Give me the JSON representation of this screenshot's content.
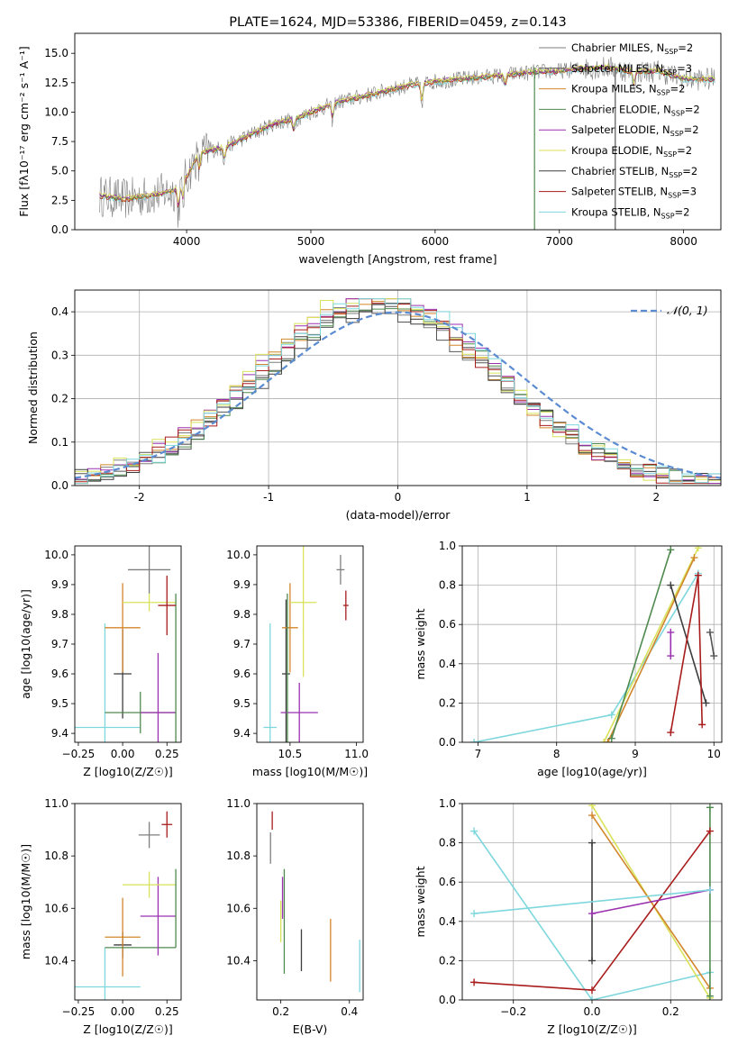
{
  "colors": [
    "#7f7f7f",
    "#555555",
    "#d2862b",
    "#4f8a4f",
    "#9b30b0",
    "#d9e25a",
    "#3d3d3d",
    "#a81c1c",
    "#7fd7de"
  ],
  "chart_data": [
    {
      "id": "spectrum",
      "type": "line",
      "title": "PLATE=1624, MJD=53386, FIBERID=0459, z=0.143",
      "xlabel": "wavelength [Angstrom, rest frame]",
      "ylabel": "Flux [fλ10⁻¹⁷ erg cm⁻² s⁻¹ A⁻¹]",
      "xlim": [
        3100,
        8300
      ],
      "ylim": [
        0,
        16.7
      ],
      "xticks": [
        4000,
        5000,
        6000,
        7000,
        8000
      ],
      "yticks": [
        0.0,
        2.5,
        5.0,
        7.5,
        10.0,
        12.5,
        15.0
      ],
      "grid": false,
      "legend_position": "top-right",
      "legend": [
        "Chabrier MILES, N_SSP=2",
        "Salpeter MILES, N_SSP=3",
        "Kroupa MILES, N_SSP=2",
        "Chabrier ELODIE, N_SSP=2",
        "Salpeter ELODIE, N_SSP=2",
        "Kroupa ELODIE, N_SSP=2",
        "Chabrier STELIB, N_SSP=2",
        "Salpeter STELIB, N_SSP=3",
        "Kroupa STELIB, N_SSP=2"
      ],
      "continuum": {
        "x": [
          3300,
          3500,
          3700,
          3900,
          4000,
          4100,
          4300,
          4500,
          4700,
          4900,
          5000,
          5200,
          5400,
          5600,
          5800,
          6000,
          6200,
          6400,
          6600,
          6800,
          7000,
          7200,
          7400,
          7600,
          7800,
          8000,
          8200
        ],
        "y": [
          2.9,
          2.6,
          2.9,
          3.3,
          4.5,
          6.5,
          7.0,
          8.0,
          9.0,
          9.5,
          10.0,
          10.8,
          11.3,
          11.8,
          12.3,
          12.6,
          12.8,
          13.0,
          13.2,
          13.4,
          13.5,
          13.7,
          13.8,
          13.4,
          13.5,
          12.8,
          12.8
        ]
      },
      "absorption_lines": [
        [
          3934,
          2.2
        ],
        [
          3969,
          1.8
        ],
        [
          4102,
          1.5
        ],
        [
          4304,
          1.2
        ],
        [
          4861,
          1.0
        ],
        [
          5175,
          1.4
        ],
        [
          5893,
          1.8
        ],
        [
          6563,
          1.0
        ],
        [
          7600,
          1.2
        ]
      ],
      "model_drops": [
        [
          6800,
          3
        ],
        [
          7450,
          1
        ]
      ]
    },
    {
      "id": "residual-hist",
      "type": "histogram",
      "xlabel": "(data-model)/error",
      "ylabel": "Normed distribution",
      "xlim": [
        -2.5,
        2.5
      ],
      "ylim": [
        0,
        0.45
      ],
      "xticks": [
        -2,
        -1,
        0,
        1,
        2
      ],
      "yticks": [
        0.0,
        0.1,
        0.2,
        0.3,
        0.4
      ],
      "grid": true,
      "legend_position": "top-right",
      "reference_curve": {
        "name": "𝒩(0, 1)",
        "color": "#5b8bd0",
        "style": "dashed"
      },
      "bin_width": 0.1,
      "peak_center": -0.15,
      "sigma": 0.92,
      "series_shift": [
        -0.12,
        0.05,
        -0.08,
        0.1,
        -0.02,
        -0.15,
        0.08,
        0.0,
        0.12
      ],
      "series_scale": [
        1.0,
        0.95,
        1.02,
        0.98,
        1.04,
        1.05,
        0.97,
        1.01,
        1.03
      ]
    },
    {
      "id": "age-vs-Z",
      "type": "errorbar",
      "xlabel": "Z [log10(Z/Z☉)]",
      "ylabel": "age  [log10(age/yr)]",
      "xlim": [
        -0.27,
        0.33
      ],
      "ylim": [
        9.37,
        10.03
      ],
      "xticks": [
        -0.25,
        0.0,
        0.25
      ],
      "xticklabels": [
        "−0.25",
        "0.00",
        "0.25"
      ],
      "yticks": [
        9.4,
        9.5,
        9.6,
        9.7,
        9.8,
        9.9,
        10.0
      ],
      "grid": false,
      "points": [
        {
          "x": -0.1,
          "y": 9.42,
          "xerr": 0.2,
          "yerr": 0.35,
          "series": 8
        },
        {
          "x": 0.0,
          "y": 9.6,
          "xerr": 0.05,
          "yerr": 0.15,
          "series": 6
        },
        {
          "x": 0.0,
          "y": 9.755,
          "xerr": 0.1,
          "yerr": 0.15,
          "series": 2
        },
        {
          "x": 0.1,
          "y": 9.47,
          "xerr": 0.2,
          "yerr": 0.07,
          "series": 3
        },
        {
          "x": 0.2,
          "y": 9.47,
          "xerr": 0.1,
          "yerr": 0.2,
          "series": 4
        },
        {
          "x": 0.15,
          "y": 9.84,
          "xerr": 0.15,
          "yerr": 0.03,
          "series": 5
        },
        {
          "x": 0.3,
          "y": 9.47,
          "xerr": 0.0,
          "yerr": 0.4,
          "series": 3
        },
        {
          "x": 0.25,
          "y": 9.83,
          "xerr": 0.05,
          "yerr": 0.1,
          "series": 7
        },
        {
          "x": 0.15,
          "y": 9.95,
          "xerr": 0.12,
          "yerr": 0.08,
          "series": 0
        }
      ]
    },
    {
      "id": "age-vs-mass",
      "type": "errorbar",
      "xlabel": "mass [log10(M/M☉)]",
      "ylabel": "",
      "xlim": [
        10.25,
        11.05
      ],
      "ylim": [
        9.37,
        10.03
      ],
      "xticks": [
        10.5,
        11.0
      ],
      "xticklabels": [
        "10.5",
        "11.0"
      ],
      "yticks": [
        9.4,
        9.5,
        9.6,
        9.7,
        9.8,
        9.9,
        10.0
      ],
      "grid": false,
      "points": [
        {
          "x": 10.35,
          "y": 9.42,
          "xerr": 0.05,
          "yerr": 0.35,
          "series": 8
        },
        {
          "x": 10.47,
          "y": 9.6,
          "xerr": 0.03,
          "yerr": 0.25,
          "series": 6
        },
        {
          "x": 10.5,
          "y": 9.755,
          "xerr": 0.06,
          "yerr": 0.15,
          "series": 2
        },
        {
          "x": 10.57,
          "y": 9.47,
          "xerr": 0.14,
          "yerr": 0.1,
          "series": 4
        },
        {
          "x": 10.6,
          "y": 9.84,
          "xerr": 0.1,
          "yerr": 0.25,
          "series": 5
        },
        {
          "x": 10.92,
          "y": 9.83,
          "xerr": 0.02,
          "yerr": 0.05,
          "series": 7
        },
        {
          "x": 10.88,
          "y": 9.95,
          "xerr": 0.03,
          "yerr": 0.05,
          "series": 0
        },
        {
          "x": 10.48,
          "y": 9.6,
          "xerr": 0.0,
          "yerr": 0.27,
          "series": 3
        }
      ]
    },
    {
      "id": "weight-vs-age",
      "type": "line",
      "xlabel": "age  [log10(age/yr)]",
      "ylabel": "mass weight",
      "xlim": [
        6.8,
        10.1
      ],
      "ylim": [
        0,
        1.0
      ],
      "xticks": [
        7,
        8,
        9,
        10
      ],
      "yticks": [
        0.0,
        0.2,
        0.4,
        0.6,
        0.8,
        1.0
      ],
      "grid": true,
      "series": [
        {
          "x": [
            6.95,
            8.7,
            9.8
          ],
          "y": [
            0.0,
            0.14,
            0.86
          ],
          "color_index": 8
        },
        {
          "x": [
            8.6,
            9.8
          ],
          "y": [
            0.0,
            0.99
          ],
          "color_index": 5
        },
        {
          "x": [
            8.65,
            9.75
          ],
          "y": [
            0.0,
            0.94
          ],
          "color_index": 2
        },
        {
          "x": [
            8.7,
            9.45
          ],
          "y": [
            0.02,
            0.98
          ],
          "color_index": 3
        },
        {
          "x": [
            9.45,
            9.9
          ],
          "y": [
            0.8,
            0.2
          ],
          "color_index": 6
        },
        {
          "x": [
            9.45,
            9.8,
            9.85
          ],
          "y": [
            0.05,
            0.85,
            0.09
          ],
          "color_index": 7
        },
        {
          "x": [
            9.45,
            9.45
          ],
          "y": [
            0.44,
            0.56
          ],
          "color_index": 4
        },
        {
          "x": [
            9.95,
            10.0
          ],
          "y": [
            0.56,
            0.44
          ],
          "color_index": 1
        }
      ]
    },
    {
      "id": "mass-vs-Z",
      "type": "errorbar",
      "xlabel": "Z [log10(Z/Z☉)]",
      "ylabel": "mass [log10(M/M☉)]",
      "xlim": [
        -0.27,
        0.33
      ],
      "ylim": [
        10.25,
        11.0
      ],
      "xticks": [
        -0.25,
        0.0,
        0.25
      ],
      "xticklabels": [
        "−0.25",
        "0.00",
        "0.25"
      ],
      "yticks": [
        10.4,
        10.6,
        10.8,
        11.0
      ],
      "grid": false,
      "points": [
        {
          "x": -0.1,
          "y": 10.3,
          "xerr": 0.2,
          "yerr": 0.15,
          "series": 8
        },
        {
          "x": 0.0,
          "y": 10.46,
          "xerr": 0.05,
          "yerr": 0.05,
          "series": 6
        },
        {
          "x": 0.0,
          "y": 10.49,
          "xerr": 0.1,
          "yerr": 0.15,
          "series": 2
        },
        {
          "x": 0.1,
          "y": 10.45,
          "xerr": 0.2,
          "yerr": 0.0,
          "series": 3
        },
        {
          "x": 0.2,
          "y": 10.57,
          "xerr": 0.1,
          "yerr": 0.15,
          "series": 4
        },
        {
          "x": 0.15,
          "y": 10.69,
          "xerr": 0.15,
          "yerr": 0.05,
          "series": 5
        },
        {
          "x": 0.25,
          "y": 10.92,
          "xerr": 0.03,
          "yerr": 0.05,
          "series": 7
        },
        {
          "x": 0.15,
          "y": 10.88,
          "xerr": 0.06,
          "yerr": 0.05,
          "series": 0
        },
        {
          "x": 0.3,
          "y": 10.6,
          "xerr": 0.0,
          "yerr": 0.15,
          "series": 3
        }
      ]
    },
    {
      "id": "mass-vs-ebv",
      "type": "errorbar",
      "xlabel": "E(B-V)",
      "ylabel": "",
      "xlim": [
        0.13,
        0.44
      ],
      "ylim": [
        10.25,
        11.0
      ],
      "xticks": [
        0.2,
        0.4
      ],
      "xticklabels": [
        "0.2",
        "0.4"
      ],
      "yticks": [
        10.4,
        10.6,
        10.8,
        11.0
      ],
      "grid": false,
      "points": [
        {
          "x": 0.175,
          "y": 10.935,
          "xerr": 0.0,
          "yerr": 0.035,
          "series": 7
        },
        {
          "x": 0.17,
          "y": 10.83,
          "xerr": 0.0,
          "yerr": 0.06,
          "series": 0
        },
        {
          "x": 0.2,
          "y": 10.55,
          "xerr": 0.0,
          "yerr": 0.08,
          "series": 5
        },
        {
          "x": 0.205,
          "y": 10.64,
          "xerr": 0.0,
          "yerr": 0.08,
          "series": 4
        },
        {
          "x": 0.21,
          "y": 10.55,
          "xerr": 0.0,
          "yerr": 0.2,
          "series": 3
        },
        {
          "x": 0.26,
          "y": 10.44,
          "xerr": 0.0,
          "yerr": 0.08,
          "series": 6
        },
        {
          "x": 0.345,
          "y": 10.44,
          "xerr": 0.0,
          "yerr": 0.12,
          "series": 2
        },
        {
          "x": 0.43,
          "y": 10.38,
          "xerr": 0.0,
          "yerr": 0.1,
          "series": 8
        }
      ]
    },
    {
      "id": "weight-vs-Z",
      "type": "line",
      "xlabel": "Z [log10(Z/Z☉)]",
      "ylabel": "mass weight",
      "xlim": [
        -0.33,
        0.33
      ],
      "ylim": [
        0,
        1.0
      ],
      "xticks": [
        -0.2,
        0.0,
        0.2
      ],
      "xticklabels": [
        "−0.2",
        "0.0",
        "0.2"
      ],
      "yticks": [
        0.0,
        0.2,
        0.4,
        0.6,
        0.8,
        1.0
      ],
      "grid": true,
      "series": [
        {
          "x": [
            -0.3,
            0.0,
            0.3
          ],
          "y": [
            0.86,
            0.0,
            0.14
          ],
          "color_index": 8
        },
        {
          "x": [
            0.0,
            0.3
          ],
          "y": [
            0.99,
            0.01
          ],
          "color_index": 5
        },
        {
          "x": [
            0.0,
            0.3
          ],
          "y": [
            0.94,
            0.06
          ],
          "color_index": 2
        },
        {
          "x": [
            0.3,
            0.3
          ],
          "y": [
            0.02,
            0.98
          ],
          "color_index": 3
        },
        {
          "x": [
            0.0,
            0.0
          ],
          "y": [
            0.8,
            0.2
          ],
          "color_index": 6
        },
        {
          "x": [
            -0.3,
            0.0,
            0.3
          ],
          "y": [
            0.09,
            0.05,
            0.86
          ],
          "color_index": 7
        },
        {
          "x": [
            0.0,
            0.3
          ],
          "y": [
            0.44,
            0.56
          ],
          "color_index": 4
        },
        {
          "x": [
            -0.3,
            0.3
          ],
          "y": [
            0.44,
            0.56
          ],
          "color_index": 8
        }
      ]
    }
  ]
}
